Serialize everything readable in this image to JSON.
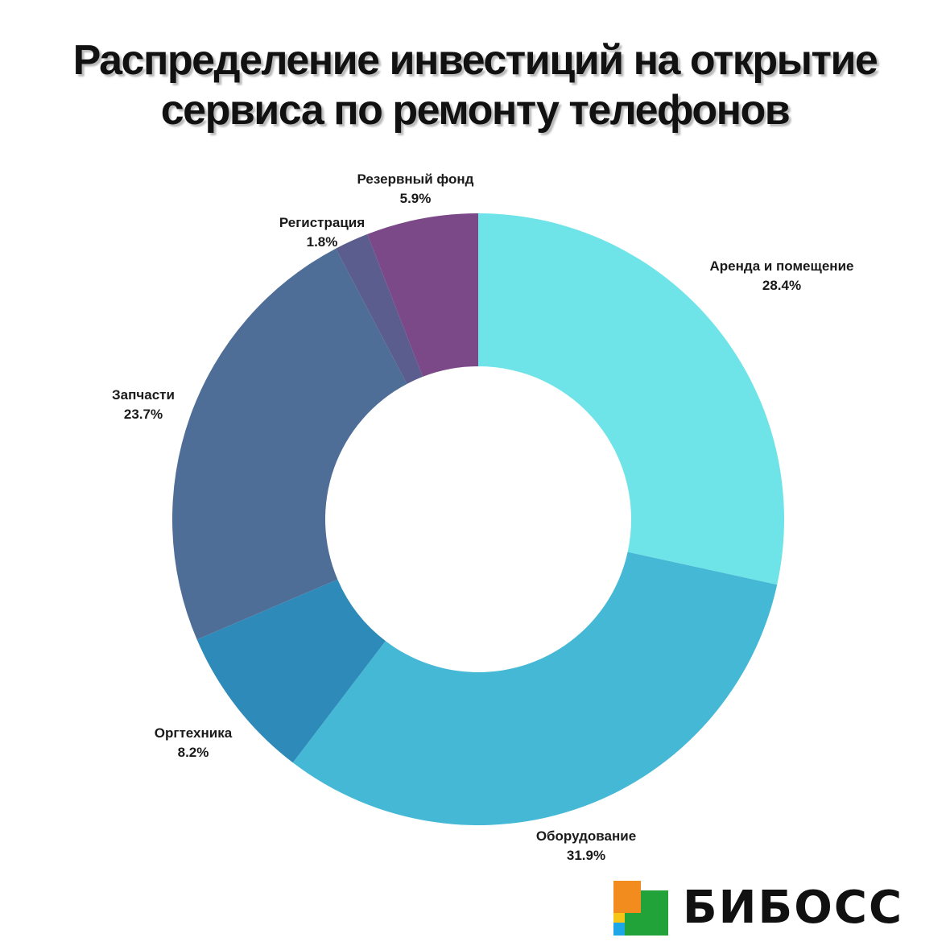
{
  "chart_data": {
    "type": "pie",
    "donut": true,
    "title": [
      "Распределение инвестиций на открытие",
      "сервиса по ремонту телефонов"
    ],
    "slices": [
      {
        "label": "Аренда и помещение",
        "value": 28.4,
        "display": "28.4%",
        "color": "#6EE3E8"
      },
      {
        "label": "Оборудование",
        "value": 31.9,
        "display": "31.9%",
        "color": "#45B8D6"
      },
      {
        "label": "Оргтехника",
        "value": 8.2,
        "display": "8.2%",
        "color": "#2E8AB8"
      },
      {
        "label": "Запчасти",
        "value": 23.7,
        "display": "23.7%",
        "color": "#4E6E98"
      },
      {
        "label": "Регистрация",
        "value": 1.8,
        "display": "1.8%",
        "color": "#5A5D8E"
      },
      {
        "label": "Резервный фонд",
        "value": 5.9,
        "display": "5.9%",
        "color": "#7B4888"
      }
    ],
    "start_angle_deg": 0,
    "direction": "clockwise"
  },
  "brand": {
    "name": "БИБОСС",
    "logo_colors": {
      "orange": "#F28C1E",
      "yellow": "#F5C518",
      "green": "#22A33A",
      "blue": "#1EA7E6"
    }
  }
}
